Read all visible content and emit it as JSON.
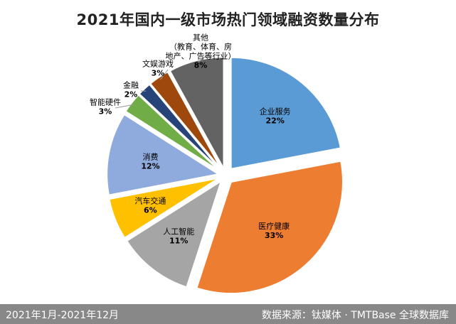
{
  "chart_data": {
    "type": "pie",
    "title": "2021年国内一级市场热门领域融资数量分布",
    "unit": "%",
    "slices": [
      {
        "name": "企业服务",
        "value": 22,
        "label": "22%",
        "color": "#5B9BD5"
      },
      {
        "name": "医疗健康",
        "value": 33,
        "label": "33%",
        "color": "#ED7D31"
      },
      {
        "name": "人工智能",
        "value": 11,
        "label": "11%",
        "color": "#A5A5A5"
      },
      {
        "name": "汽车交通",
        "value": 6,
        "label": "6%",
        "color": "#FFC000"
      },
      {
        "name": "消费",
        "value": 12,
        "label": "12%",
        "color": "#8FAADC"
      },
      {
        "name": "智能硬件",
        "value": 3,
        "label": "3%",
        "color": "#70AD47"
      },
      {
        "name": "金融",
        "value": 2,
        "label": "2%",
        "color": "#264478"
      },
      {
        "name": "文娱游戏",
        "value": 3,
        "label": "3%",
        "color": "#9E480E"
      },
      {
        "name": "其他",
        "name_line2": "（教育、体育、房",
        "name_line3": "地产、广告等行业）",
        "value": 8,
        "label": "8%",
        "color": "#636363"
      }
    ]
  },
  "footer": {
    "date_range": "2021年1月-2021年12月",
    "source": "数据来源：钛媒体 · TMTBase 全球数据库"
  }
}
